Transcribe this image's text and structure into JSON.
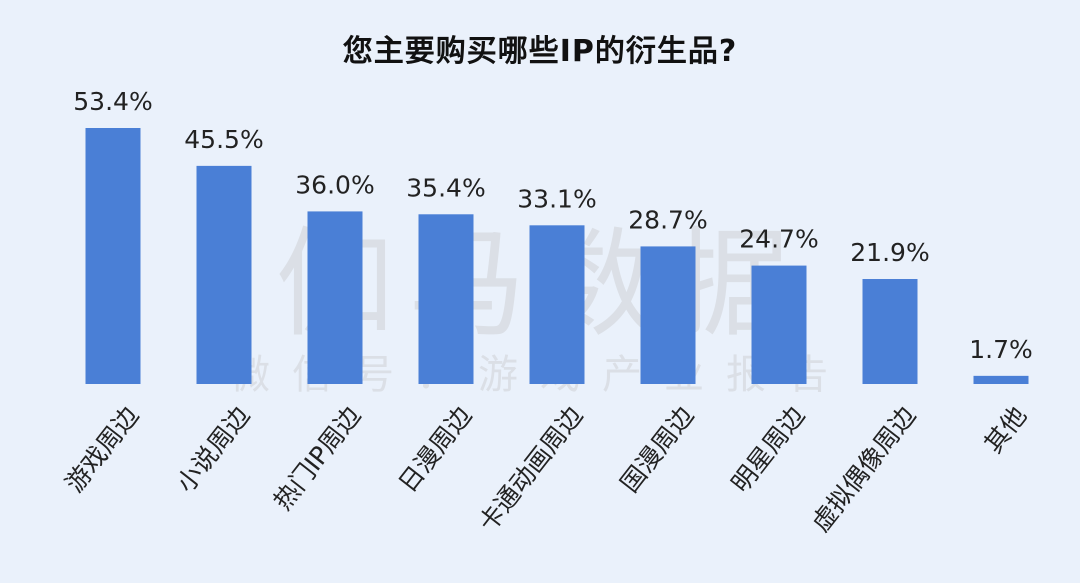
{
  "chart_data": {
    "type": "bar",
    "title": "您主要购买哪些IP的衍生品?",
    "categories": [
      "游戏周边",
      "小说周边",
      "热门IP周边",
      "日漫周边",
      "卡通动画周边",
      "国漫周边",
      "明星周边",
      "虚拟偶像周边",
      "其他"
    ],
    "values": [
      53.4,
      45.5,
      36.0,
      35.4,
      33.1,
      28.7,
      24.7,
      21.9,
      1.7
    ],
    "value_labels": [
      "53.4%",
      "45.5%",
      "36.0%",
      "35.4%",
      "33.1%",
      "28.7%",
      "24.7%",
      "21.9%",
      "1.7%"
    ],
    "ylim": [
      0,
      53.4
    ],
    "grid": false,
    "legend": "none",
    "bar_color": "#4a7fd6"
  },
  "watermark": {
    "main": "伽马数据",
    "sub": "微信号：游戏产业报告"
  }
}
